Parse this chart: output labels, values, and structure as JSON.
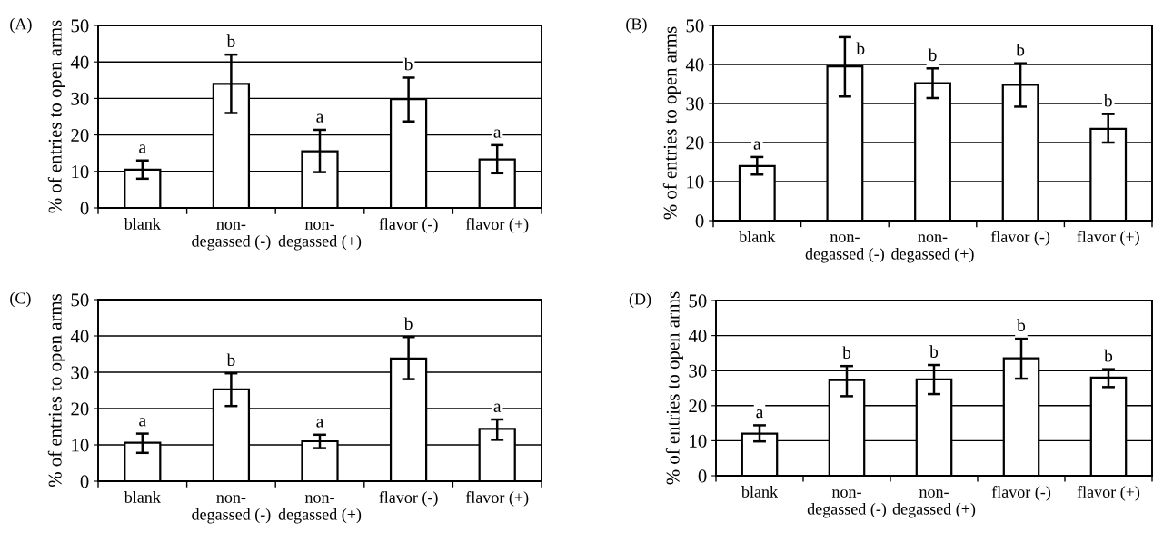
{
  "chart_data": [
    {
      "type": "bar",
      "title": "(A)",
      "ylabel": "% of entries to open arms",
      "categories": [
        "blank",
        "non-\ndegassed (-)",
        "non-\ndegassed (+)",
        "flavor (-)",
        "flavor (+)"
      ],
      "series": [
        {
          "color": "#ffffff",
          "values": [
            10.5,
            34,
            15.5,
            29.8,
            13.3
          ],
          "errors": [
            [
              8,
              13
            ],
            [
              26,
              42
            ],
            [
              9.8,
              21.4
            ],
            [
              23.7,
              35.7
            ],
            [
              9.5,
              17.2
            ]
          ]
        }
      ],
      "ylim": [
        0,
        50
      ],
      "yticks": [
        0,
        10,
        20,
        30,
        40,
        50
      ],
      "grid": "y",
      "annotations": [
        {
          "text": "a",
          "x": "blank",
          "y": 13
        },
        {
          "text": "b",
          "x": "non-\ndegassed (-)",
          "y": 42
        },
        {
          "text": "a",
          "x": "non-\ndegassed (+)",
          "y": 21.4
        },
        {
          "text": "b",
          "x": "flavor (-)",
          "y": 35.7
        },
        {
          "text": "a",
          "x": "flavor (+)",
          "y": 17.2
        }
      ]
    },
    {
      "type": "bar",
      "title": "(B)",
      "ylabel": "% of entries to open arms",
      "categories": [
        "blank",
        "non-\ndegassed (-)",
        "non-\ndegassed (+)",
        "flavor (-)",
        "flavor (+)"
      ],
      "series": [
        {
          "color": "#ffffff",
          "values": [
            14,
            39.5,
            35.2,
            34.8,
            23.5
          ],
          "errors": [
            [
              11.8,
              16.3
            ],
            [
              31.8,
              47
            ],
            [
              31.4,
              39
            ],
            [
              29.2,
              40.3
            ],
            [
              20,
              27.3
            ]
          ]
        }
      ],
      "ylim": [
        0,
        50
      ],
      "yticks": [
        0,
        10,
        20,
        30,
        40,
        50
      ],
      "grid": "y",
      "annotations": [
        {
          "text": "a",
          "x": "blank",
          "y": 16.3
        },
        {
          "text": "b",
          "x": "non-\ndegassed (-)",
          "y": 47
        },
        {
          "text": "b",
          "x": "non-\ndegassed (+)",
          "y": 39
        },
        {
          "text": "b",
          "x": "flavor (-)",
          "y": 40.3
        },
        {
          "text": "b",
          "x": "flavor (+)",
          "y": 27.3
        }
      ]
    },
    {
      "type": "bar",
      "title": "(C)",
      "ylabel": "% of entries to open arms",
      "categories": [
        "blank",
        "non-\ndegassed (-)",
        "non-\ndegassed (+)",
        "flavor (-)",
        "flavor (+)"
      ],
      "series": [
        {
          "color": "#ffffff",
          "values": [
            10.6,
            25.3,
            11,
            33.8,
            14.4
          ],
          "errors": [
            [
              7.8,
              13.1
            ],
            [
              20.7,
              29.7
            ],
            [
              9.1,
              12.8
            ],
            [
              28.1,
              39.7
            ],
            [
              11.4,
              17
            ]
          ]
        }
      ],
      "ylim": [
        0,
        50
      ],
      "yticks": [
        0,
        10,
        20,
        30,
        40,
        50
      ],
      "grid": "y",
      "annotations": [
        {
          "text": "a",
          "x": "blank",
          "y": 13.1
        },
        {
          "text": "b",
          "x": "non-\ndegassed (-)",
          "y": 29.7
        },
        {
          "text": "a",
          "x": "non-\ndegassed (+)",
          "y": 12.8
        },
        {
          "text": "b",
          "x": "flavor (-)",
          "y": 39.7
        },
        {
          "text": "a",
          "x": "flavor (+)",
          "y": 17
        }
      ]
    },
    {
      "type": "bar",
      "title": "(D)",
      "ylabel": "% of entries to open arms",
      "categories": [
        "blank",
        "non-\ndegassed (-)",
        "non-\ndegassed (+)",
        "flavor (-)",
        "flavor (+)"
      ],
      "series": [
        {
          "color": "#ffffff",
          "values": [
            12,
            27.3,
            27.5,
            33.5,
            28
          ],
          "errors": [
            [
              9.8,
              14.4
            ],
            [
              22.7,
              31.3
            ],
            [
              23.3,
              31.6
            ],
            [
              27.7,
              39.1
            ],
            [
              25.3,
              30.4
            ]
          ]
        }
      ],
      "ylim": [
        0,
        50
      ],
      "yticks": [
        0,
        10,
        20,
        30,
        40,
        50
      ],
      "grid": "y",
      "annotations": [
        {
          "text": "a",
          "x": "blank",
          "y": 14.4
        },
        {
          "text": "b",
          "x": "non-\ndegassed (-)",
          "y": 31.3
        },
        {
          "text": "b",
          "x": "non-\ndegassed (+)",
          "y": 31.6
        },
        {
          "text": "b",
          "x": "flavor (-)",
          "y": 39.1
        },
        {
          "text": "b",
          "x": "flavor (+)",
          "y": 30.4
        }
      ]
    }
  ]
}
